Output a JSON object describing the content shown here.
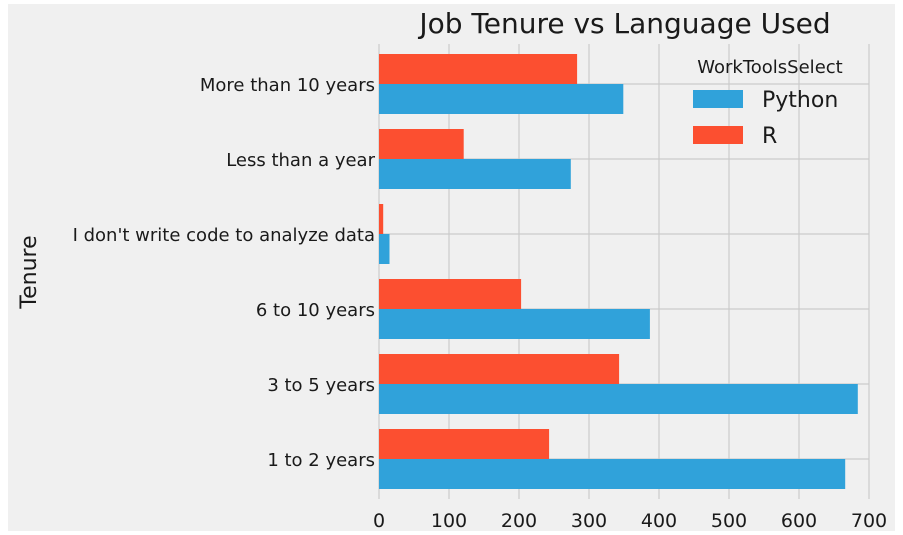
{
  "chart_data": {
    "type": "bar",
    "orientation": "horizontal",
    "title": "Job Tenure vs Language Used",
    "xlabel": "",
    "ylabel": "Tenure",
    "categories": [
      "More than 10 years",
      "Less than a year",
      "I don't write code to analyze data",
      "6 to 10 years",
      "3 to 5 years",
      "1 to 2 years"
    ],
    "series": [
      {
        "name": "Python",
        "color": "#30a2da",
        "values": [
          349,
          274,
          15,
          387,
          684,
          666
        ]
      },
      {
        "name": "R",
        "color": "#fc4f30",
        "values": [
          283,
          121,
          6,
          203,
          343,
          243
        ]
      }
    ],
    "xlim": [
      0,
      700
    ],
    "xticks": [
      "0",
      "100",
      "200",
      "300",
      "400",
      "500",
      "600",
      "700"
    ],
    "grid": true,
    "legend": {
      "title": "WorkToolsSelect",
      "position": "top-right"
    }
  }
}
